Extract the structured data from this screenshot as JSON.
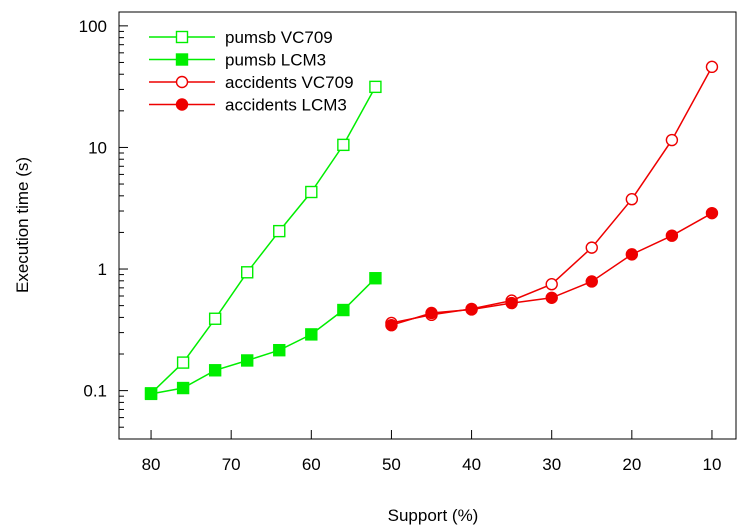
{
  "chart_data": {
    "type": "line",
    "title": "",
    "xlabel": "Support (%)",
    "ylabel": "Execution time (s)",
    "x_axis": {
      "reversed": true,
      "range": [
        84,
        7
      ],
      "ticks": [
        80,
        70,
        60,
        50,
        40,
        30,
        20,
        10
      ]
    },
    "y_axis": {
      "scale": "log",
      "range": [
        0.04,
        130
      ],
      "ticks": [
        0.1,
        1,
        10,
        100
      ],
      "tick_labels": [
        "0.1",
        "1",
        "10",
        "100"
      ]
    },
    "grid": false,
    "legend": {
      "position": "top-left"
    },
    "series": [
      {
        "name": "pumsb VC709",
        "color": "#00ee00",
        "marker": "square-open",
        "x": [
          80,
          76,
          72,
          68,
          64,
          60,
          56,
          52
        ],
        "y": [
          0.095,
          0.17,
          0.39,
          0.94,
          2.05,
          4.3,
          10.5,
          31.5
        ]
      },
      {
        "name": "pumsb LCM3",
        "color": "#00ee00",
        "marker": "square-filled",
        "x": [
          80,
          76,
          72,
          68,
          64,
          60,
          56,
          52
        ],
        "y": [
          0.094,
          0.105,
          0.147,
          0.177,
          0.215,
          0.29,
          0.46,
          0.84
        ]
      },
      {
        "name": "accidents VC709",
        "color": "#ee0000",
        "marker": "circle-open",
        "x": [
          50,
          45,
          40,
          35,
          30,
          25,
          20,
          15,
          10
        ],
        "y": [
          0.36,
          0.42,
          0.47,
          0.55,
          0.75,
          1.5,
          3.75,
          11.5,
          46
        ]
      },
      {
        "name": "accidents LCM3",
        "color": "#ee0000",
        "marker": "circle-filled",
        "x": [
          50,
          45,
          40,
          35,
          30,
          25,
          20,
          15,
          10
        ],
        "y": [
          0.345,
          0.435,
          0.465,
          0.525,
          0.58,
          0.79,
          1.32,
          1.88,
          2.88
        ]
      }
    ]
  }
}
